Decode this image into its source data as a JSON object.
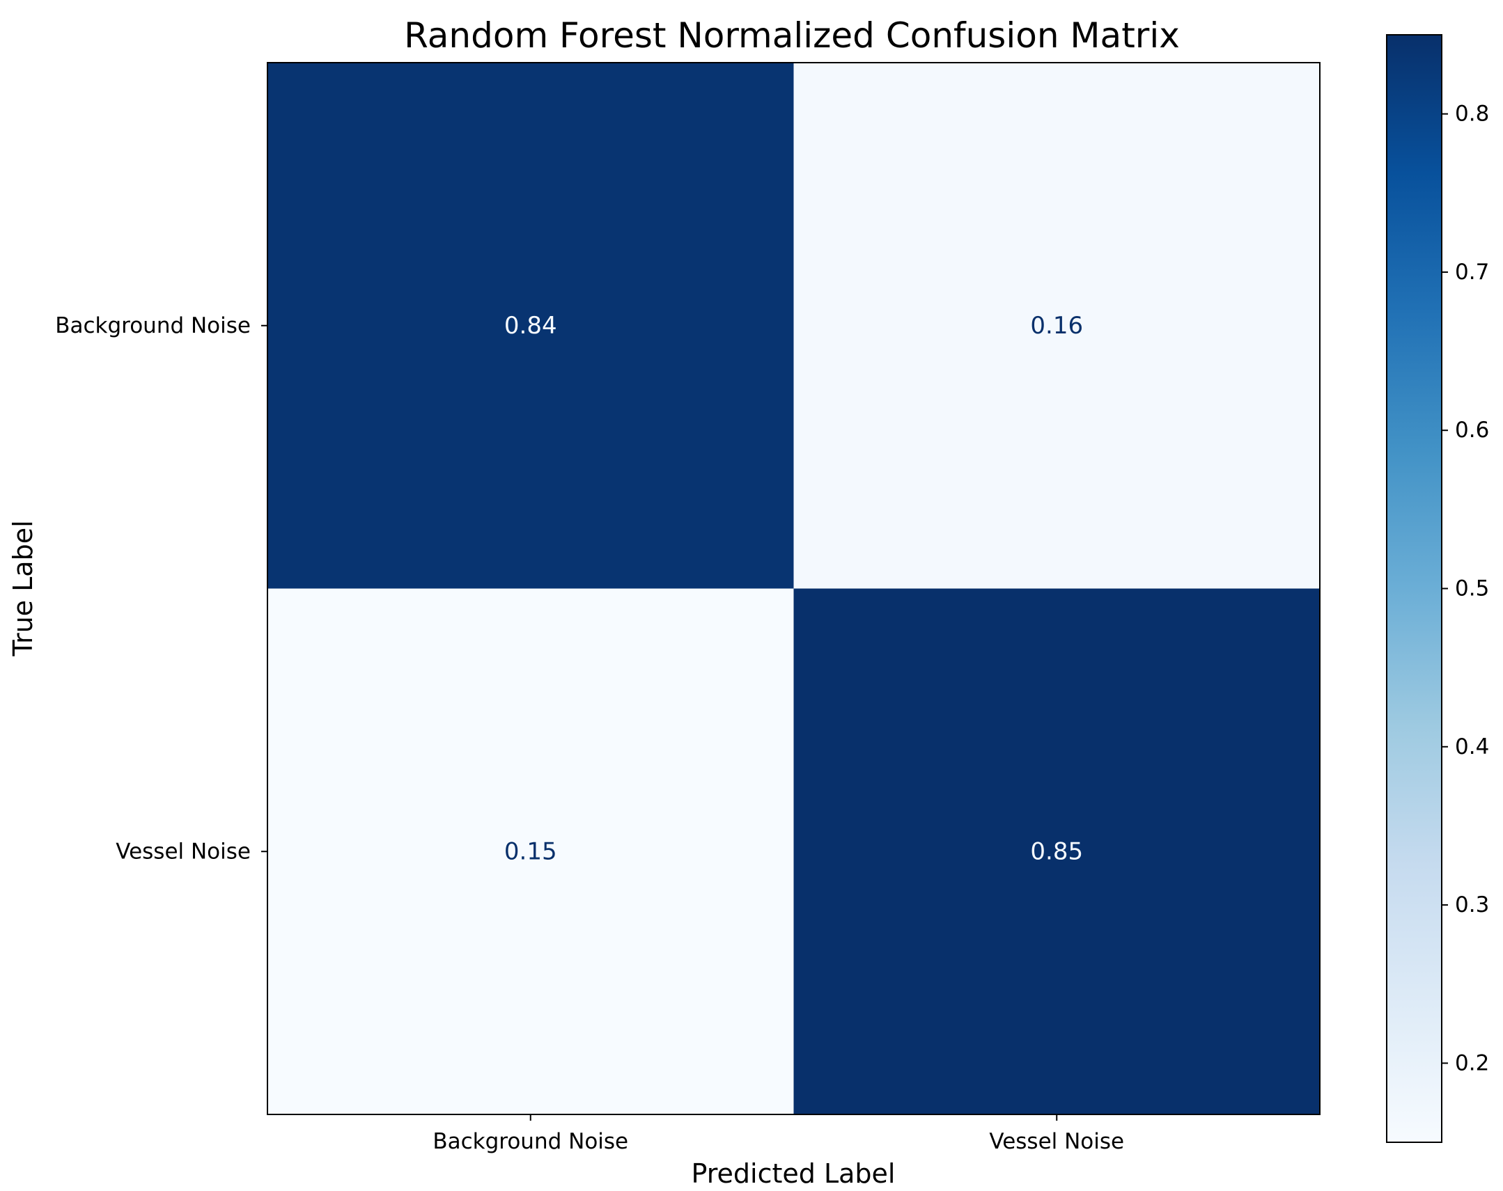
{
  "chart_data": {
    "type": "heatmap",
    "title": "Random Forest Normalized Confusion Matrix",
    "xlabel": "Predicted Label",
    "ylabel": "True Label",
    "x_categories": [
      "Background Noise",
      "Vessel Noise"
    ],
    "y_categories": [
      "Background Noise",
      "Vessel Noise"
    ],
    "matrix": [
      [
        0.84,
        0.16
      ],
      [
        0.15,
        0.85
      ]
    ],
    "cell_labels": [
      [
        "0.84",
        "0.16"
      ],
      [
        "0.15",
        "0.85"
      ]
    ],
    "colorbar": {
      "colormap": "Blues",
      "vmin": 0.15,
      "vmax": 0.85,
      "ticks": [
        0.2,
        0.3,
        0.4,
        0.5,
        0.6,
        0.7,
        0.8
      ],
      "tick_labels": [
        "0.2",
        "0.3",
        "0.4",
        "0.5",
        "0.6",
        "0.7",
        "0.8"
      ]
    },
    "colors": {
      "high": "#08306b",
      "low": "#f7fbff",
      "text_on_dark": "#f7fbff",
      "text_on_light": "#08306b"
    }
  }
}
